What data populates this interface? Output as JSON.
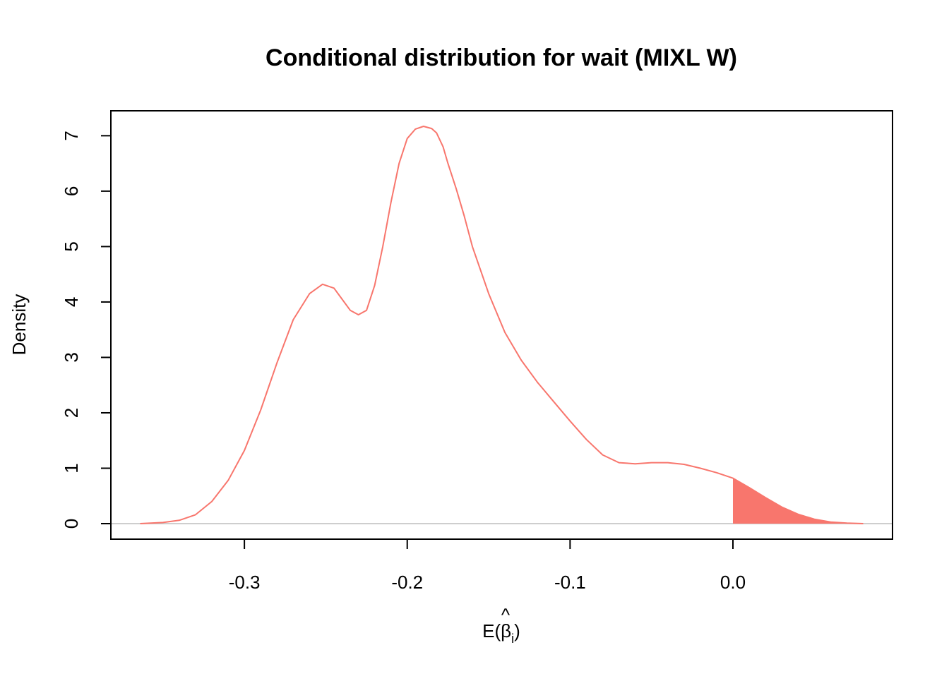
{
  "chart_data": {
    "type": "area",
    "title": "Conditional distribution for wait (MIXL W)",
    "xlabel": {
      "prefix": "E(",
      "symbol": "β",
      "hat": "^",
      "subscript": "i",
      "suffix": ")"
    },
    "ylabel": "Density",
    "xlim": [
      -0.382,
      0.098
    ],
    "ylim": [
      -0.28,
      7.45
    ],
    "x_ticks": [
      -0.3,
      -0.2,
      -0.1,
      0.0
    ],
    "x_tick_labels": [
      "-0.3",
      "-0.2",
      "-0.1",
      "0.0"
    ],
    "y_ticks": [
      0,
      1,
      2,
      3,
      4,
      5,
      6,
      7
    ],
    "y_tick_labels": [
      "0",
      "1",
      "2",
      "3",
      "4",
      "5",
      "6",
      "7"
    ],
    "grid": false,
    "legend": "none",
    "baseline": 0,
    "line_color": "#F8766D",
    "fill_color": "#F8766D",
    "baseline_color": "#BEBEBE",
    "shade_from_x": 0.0,
    "series": [
      {
        "x": [
          -0.364,
          -0.35,
          -0.34,
          -0.33,
          -0.32,
          -0.31,
          -0.3,
          -0.29,
          -0.28,
          -0.27,
          -0.26,
          -0.252,
          -0.245,
          -0.24,
          -0.235,
          -0.23,
          -0.225,
          -0.22,
          -0.215,
          -0.21,
          -0.205,
          -0.2,
          -0.195,
          -0.19,
          -0.185,
          -0.182,
          -0.178,
          -0.175,
          -0.17,
          -0.165,
          -0.16,
          -0.15,
          -0.14,
          -0.13,
          -0.12,
          -0.11,
          -0.1,
          -0.09,
          -0.08,
          -0.07,
          -0.06,
          -0.05,
          -0.04,
          -0.03,
          -0.02,
          -0.01,
          0.0,
          0.01,
          0.02,
          0.03,
          0.04,
          0.05,
          0.06,
          0.07,
          0.08
        ],
        "y": [
          0.0,
          0.02,
          0.06,
          0.16,
          0.4,
          0.78,
          1.32,
          2.05,
          2.9,
          3.68,
          4.15,
          4.32,
          4.25,
          4.05,
          3.85,
          3.77,
          3.85,
          4.3,
          5.0,
          5.8,
          6.5,
          6.95,
          7.12,
          7.17,
          7.13,
          7.05,
          6.8,
          6.5,
          6.05,
          5.55,
          5.0,
          4.15,
          3.45,
          2.95,
          2.55,
          2.2,
          1.85,
          1.52,
          1.24,
          1.1,
          1.08,
          1.1,
          1.1,
          1.07,
          1.0,
          0.92,
          0.82,
          0.65,
          0.47,
          0.3,
          0.17,
          0.08,
          0.03,
          0.01,
          0.0
        ]
      }
    ]
  }
}
